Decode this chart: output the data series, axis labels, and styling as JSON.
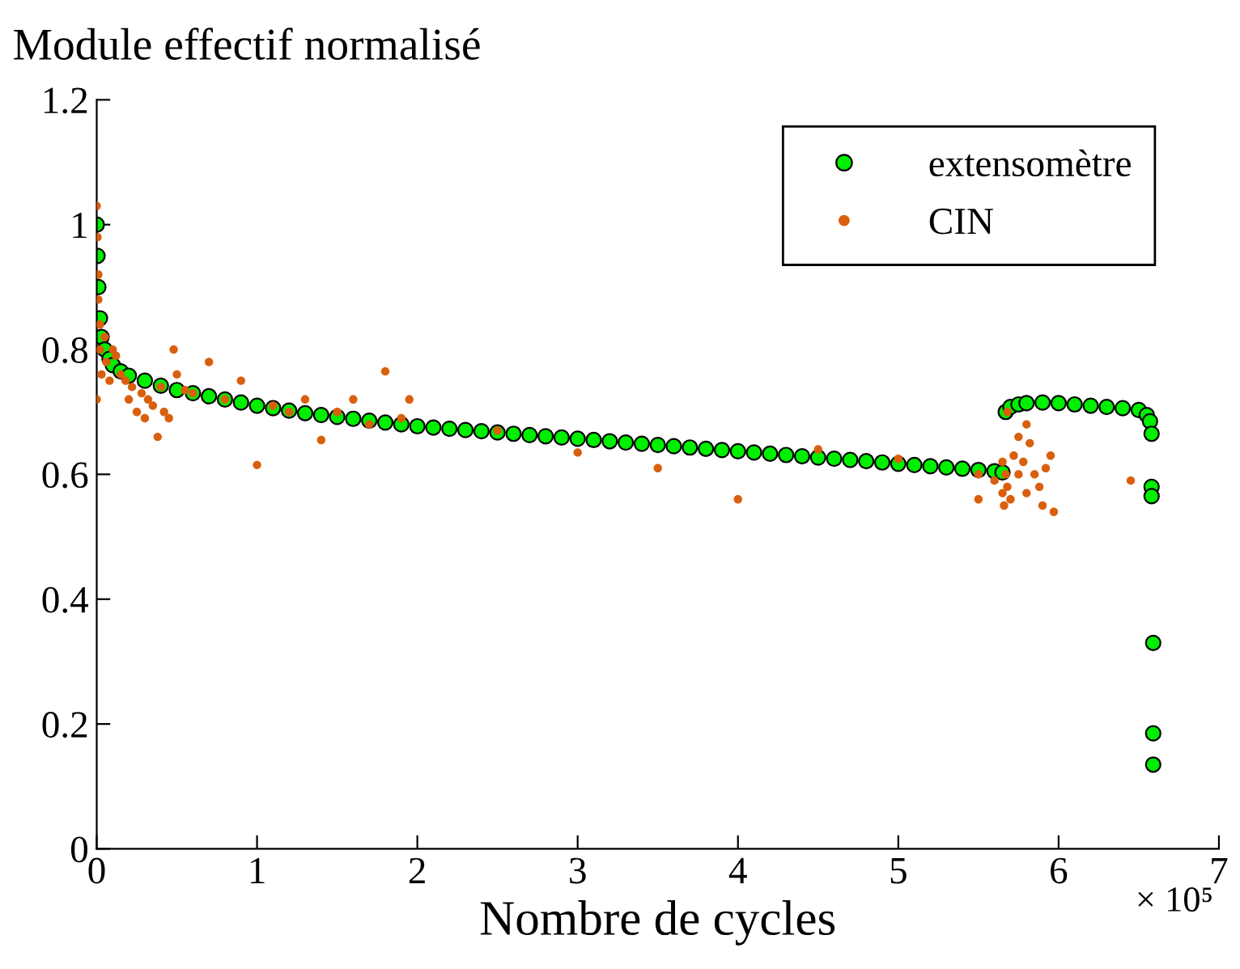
{
  "chart_data": {
    "type": "scatter",
    "title": "Module effectif normalisé",
    "xlabel": "Nombre de cycles",
    "annotations": [
      "× 10⁵"
    ],
    "xlim": [
      0,
      7
    ],
    "xticks": [
      0,
      1,
      2,
      3,
      4,
      5,
      6,
      7
    ],
    "ylim": [
      0,
      1.2
    ],
    "yticks": [
      0,
      0.2,
      0.4,
      0.6,
      0.8,
      1,
      1.2
    ],
    "grid": false,
    "legend": "top right",
    "marker": "circle",
    "series": [
      {
        "name": "extensomètre",
        "color": "#00ee00",
        "x": [
          0,
          0.005,
          0.01,
          0.02,
          0.03,
          0.05,
          0.08,
          0.1,
          0.15,
          0.2,
          0.3,
          0.4,
          0.5,
          0.6,
          0.7,
          0.8,
          0.9,
          1.0,
          1.1,
          1.2,
          1.3,
          1.4,
          1.5,
          1.6,
          1.7,
          1.8,
          1.9,
          2.0,
          2.1,
          2.2,
          2.3,
          2.4,
          2.5,
          2.6,
          2.7,
          2.8,
          2.9,
          3.0,
          3.1,
          3.2,
          3.3,
          3.4,
          3.5,
          3.6,
          3.7,
          3.8,
          3.9,
          4.0,
          4.1,
          4.2,
          4.3,
          4.4,
          4.5,
          4.6,
          4.7,
          4.8,
          4.9,
          5.0,
          5.1,
          5.2,
          5.3,
          5.4,
          5.5,
          5.6,
          5.65,
          5.67,
          5.7,
          5.75,
          5.8,
          5.9,
          6.0,
          6.1,
          6.2,
          6.3,
          6.4,
          6.5,
          6.55,
          6.57,
          6.58,
          6.58,
          6.58,
          6.59,
          6.59,
          6.59
        ],
        "values": [
          1.0,
          0.95,
          0.9,
          0.85,
          0.82,
          0.8,
          0.785,
          0.775,
          0.765,
          0.758,
          0.75,
          0.742,
          0.735,
          0.73,
          0.725,
          0.72,
          0.715,
          0.71,
          0.706,
          0.702,
          0.698,
          0.695,
          0.692,
          0.689,
          0.686,
          0.683,
          0.68,
          0.677,
          0.675,
          0.673,
          0.671,
          0.669,
          0.667,
          0.665,
          0.663,
          0.661,
          0.659,
          0.657,
          0.655,
          0.653,
          0.651,
          0.649,
          0.647,
          0.645,
          0.643,
          0.641,
          0.639,
          0.637,
          0.635,
          0.633,
          0.631,
          0.629,
          0.627,
          0.625,
          0.623,
          0.621,
          0.619,
          0.617,
          0.615,
          0.613,
          0.611,
          0.609,
          0.607,
          0.605,
          0.603,
          0.7,
          0.708,
          0.712,
          0.714,
          0.715,
          0.714,
          0.712,
          0.71,
          0.708,
          0.706,
          0.703,
          0.695,
          0.685,
          0.665,
          0.58,
          0.565,
          0.33,
          0.185,
          0.135
        ]
      },
      {
        "name": "CIN",
        "color": "#d95f0e",
        "x": [
          0,
          0.005,
          0.01,
          0.01,
          0.02,
          0.02,
          0.03,
          0,
          0.05,
          0.06,
          0.08,
          0.1,
          0.12,
          0.15,
          0.18,
          0.2,
          0.22,
          0.25,
          0.28,
          0.3,
          0.32,
          0.35,
          0.38,
          0.4,
          0.42,
          0.45,
          0.48,
          0.5,
          0.55,
          0.6,
          0.7,
          0.8,
          0.9,
          1.0,
          1.1,
          1.2,
          1.3,
          1.4,
          1.5,
          1.6,
          1.7,
          1.8,
          1.9,
          1.95,
          2.5,
          3.0,
          3.5,
          4.0,
          4.5,
          5.0,
          5.5,
          5.6,
          5.5,
          5.65,
          5.65,
          5.66,
          5.67,
          5.68,
          5.7,
          5.72,
          5.75,
          5.78,
          5.8,
          5.82,
          5.85,
          5.88,
          5.9,
          5.92,
          5.95,
          5.97,
          5.75,
          5.8,
          5.68,
          6.45
        ],
        "values": [
          1.03,
          0.98,
          0.92,
          0.88,
          0.84,
          0.8,
          0.76,
          0.72,
          0.82,
          0.78,
          0.75,
          0.8,
          0.79,
          0.76,
          0.75,
          0.72,
          0.74,
          0.7,
          0.73,
          0.69,
          0.72,
          0.71,
          0.66,
          0.74,
          0.7,
          0.69,
          0.8,
          0.76,
          0.735,
          0.73,
          0.78,
          0.72,
          0.75,
          0.615,
          0.71,
          0.7,
          0.72,
          0.655,
          0.7,
          0.72,
          0.68,
          0.765,
          0.69,
          0.72,
          0.67,
          0.635,
          0.61,
          0.56,
          0.64,
          0.625,
          0.6,
          0.59,
          0.56,
          0.62,
          0.57,
          0.55,
          0.6,
          0.58,
          0.56,
          0.63,
          0.6,
          0.62,
          0.57,
          0.65,
          0.6,
          0.58,
          0.55,
          0.61,
          0.63,
          0.54,
          0.66,
          0.68,
          0.7,
          0.59
        ]
      }
    ]
  }
}
